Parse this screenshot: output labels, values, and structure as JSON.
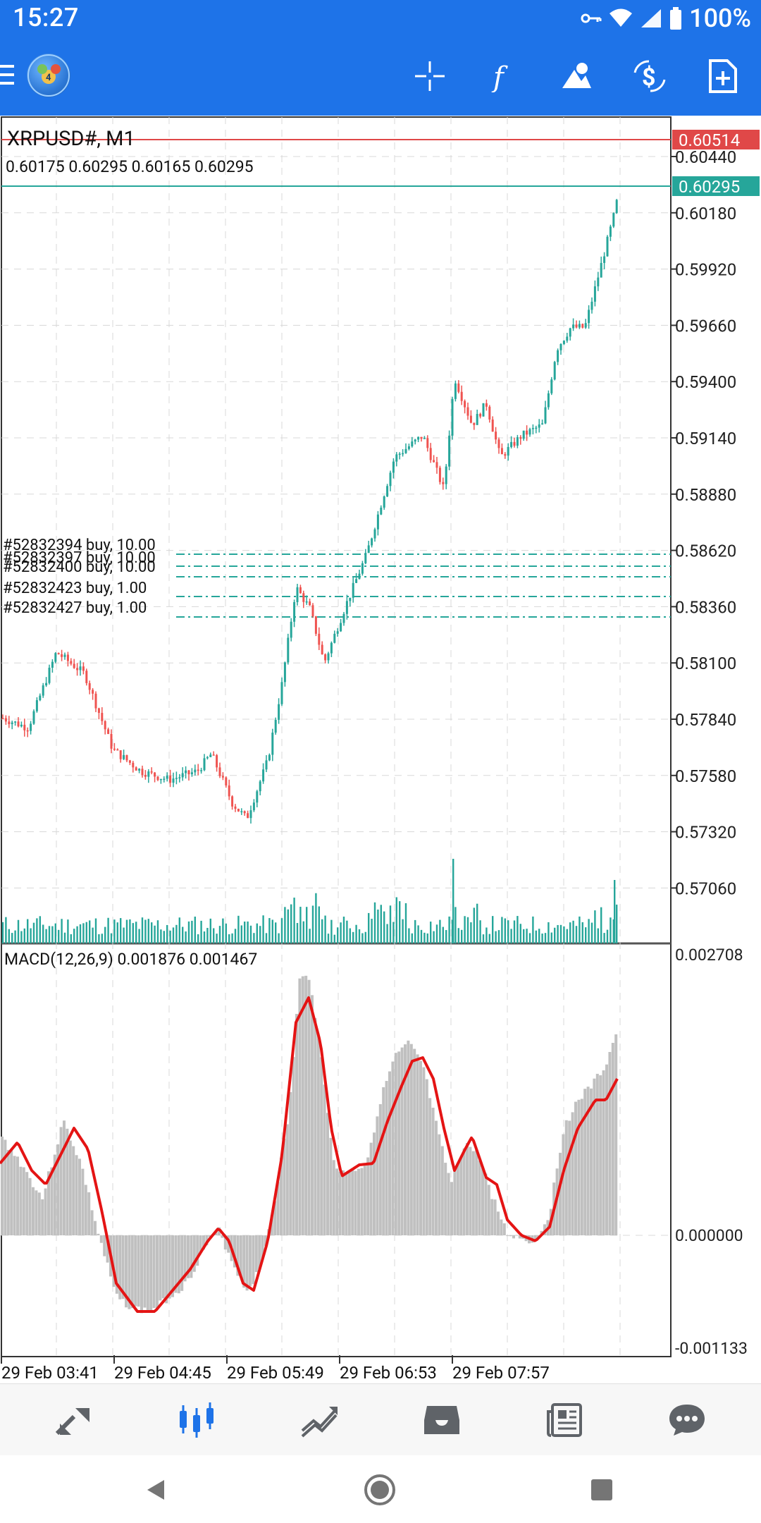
{
  "status_bar": {
    "time": "15:27",
    "battery": "100%"
  },
  "toolbar": {
    "icons": [
      "menu-icon",
      "app-logo",
      "crosshair-icon",
      "indicators-icon",
      "objects-icon",
      "timeframe-dollar-icon",
      "new-order-icon"
    ]
  },
  "chart": {
    "symbol_title": "XRPUSD#, M1",
    "ohlc": "0.60175 0.60295 0.60165 0.60295",
    "price_lines": {
      "ask": {
        "label": "0.60514",
        "color": "#e04848"
      },
      "bid": {
        "label": "0.60295",
        "color": "#26a69a"
      }
    },
    "price_axis": [
      "0.60440",
      "0.60180",
      "0.59920",
      "0.59660",
      "0.59400",
      "0.59140",
      "0.58880",
      "0.58620",
      "0.58360",
      "0.58100",
      "0.57840",
      "0.57580",
      "0.57320",
      "0.57060"
    ],
    "orders": [
      "#52832394 buy, 10.00",
      "#52832397 buy, 10.00",
      "#52832400 buy, 10.00",
      "#52832423 buy, 1.00",
      "#52832427 buy, 1.00"
    ],
    "macd": {
      "label": "MACD(12,26,9) 0.001876 0.001467",
      "axis_top": "0.002708",
      "axis_zero": "0.000000",
      "axis_bottom": "-0.001133",
      "signal_color": "#e41414",
      "hist_color": "#c0c0c0"
    },
    "time_axis": [
      "29 Feb 03:41",
      "29 Feb 04:45",
      "29 Feb 05:49",
      "29 Feb 06:53",
      "29 Feb 07:57"
    ],
    "colors": {
      "bull": "#26a69a",
      "bear": "#ef5350",
      "grid": "#d8d8d8",
      "volume": "#26a69a"
    }
  },
  "bottom_nav": {
    "items": [
      {
        "name": "quotes-icon",
        "active": false
      },
      {
        "name": "chart-icon",
        "active": true
      },
      {
        "name": "trade-icon",
        "active": false
      },
      {
        "name": "history-icon",
        "active": false
      },
      {
        "name": "news-icon",
        "active": false
      },
      {
        "name": "chat-icon",
        "active": false
      }
    ]
  }
}
